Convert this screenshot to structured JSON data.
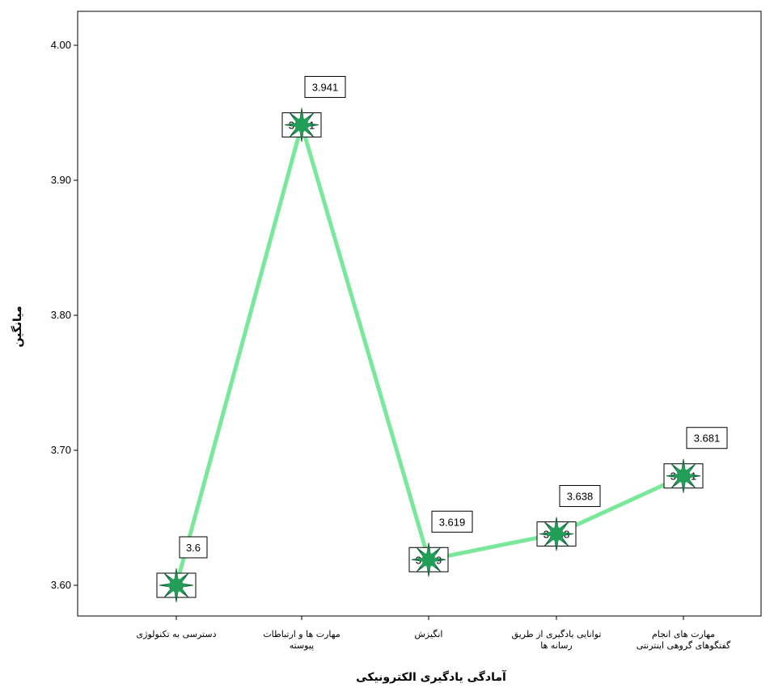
{
  "chart_data": {
    "type": "line",
    "title": "",
    "xlabel": "آمادگی یادگیری الکترونیکی",
    "ylabel": "میانگین",
    "ylim": [
      3.58,
      4.02
    ],
    "yticks": [
      "3.60",
      "3.70",
      "3.80",
      "3.90",
      "4.00"
    ],
    "ytick_values": [
      3.6,
      3.7,
      3.8,
      3.9,
      4.0
    ],
    "categories": [
      [
        "دسترسی به تکنولوژی"
      ],
      [
        "مهارت ها و ارتباطات",
        "پیوسته"
      ],
      [
        "انگیزش"
      ],
      [
        "توانایی یادگیری از طریق",
        "رسانه ها"
      ],
      [
        "مهارت های انجام",
        "گفتگوهای گروهی اینترنتی"
      ]
    ],
    "series": [
      {
        "values": [
          3.6,
          3.941,
          3.619,
          3.638,
          3.681
        ]
      }
    ],
    "data_labels": [
      "3.6",
      "3.941",
      "3.619",
      "3.638",
      "3.681"
    ],
    "grid": false,
    "colors": {
      "line": "#7ae89a",
      "marker": "#1c8a4e",
      "axis": "#000000"
    }
  }
}
